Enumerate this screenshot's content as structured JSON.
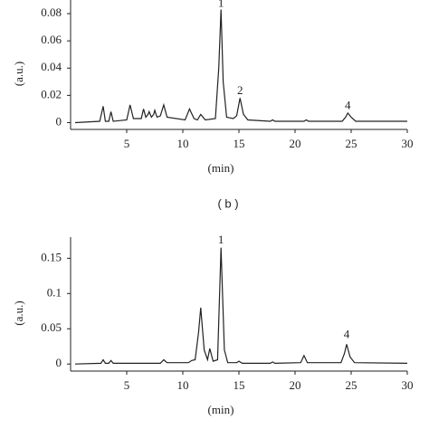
{
  "chart_data": [
    {
      "type": "line",
      "xlabel": "(min)",
      "ylabel": "(a.u.)",
      "xlim": [
        0,
        30
      ],
      "ylim": [
        -0.005,
        0.09
      ],
      "xticks": [
        5,
        10,
        15,
        20,
        25,
        30
      ],
      "yticks": [
        0,
        0.02,
        0.04,
        0.06,
        0.08
      ],
      "series": [
        {
          "color": "#222222",
          "x": [
            0.4,
            2.6,
            2.9,
            3.1,
            3.4,
            3.6,
            3.8,
            5.0,
            5.3,
            5.6,
            6.3,
            6.5,
            6.7,
            6.9,
            7.0,
            7.2,
            7.4,
            7.5,
            7.7,
            8.0,
            8.3,
            8.6,
            10.2,
            10.6,
            11.0,
            11.3,
            11.6,
            12.0,
            12.9,
            13.2,
            13.4,
            13.6,
            13.9,
            14.5,
            14.8,
            15.1,
            15.4,
            15.8,
            17.8,
            18.0,
            18.2,
            20.8,
            21.0,
            21.2,
            24.2,
            24.5,
            24.7,
            25.0,
            25.4,
            30
          ],
          "values": [
            0,
            0.001,
            0.012,
            0.001,
            0.001,
            0.008,
            0.001,
            0.002,
            0.013,
            0.003,
            0.003,
            0.01,
            0.004,
            0.006,
            0.008,
            0.004,
            0.006,
            0.009,
            0.004,
            0.005,
            0.013,
            0.004,
            0.002,
            0.01,
            0.003,
            0.002,
            0.006,
            0.002,
            0.003,
            0.04,
            0.083,
            0.03,
            0.004,
            0.003,
            0.005,
            0.018,
            0.006,
            0.002,
            0.001,
            0.002,
            0.001,
            0.001,
            0.002,
            0.001,
            0.001,
            0.004,
            0.007,
            0.004,
            0.001,
            0.001
          ]
        }
      ],
      "annotations": [
        {
          "text": "1",
          "x": 13.4,
          "y": 0.087
        },
        {
          "text": "2",
          "x": 15.1,
          "y": 0.023
        },
        {
          "text": "4",
          "x": 24.7,
          "y": 0.012
        }
      ]
    },
    {
      "type": "line",
      "title": "( b )",
      "xlabel": "(min)",
      "ylabel": "(a.u.)",
      "xlim": [
        0,
        30
      ],
      "ylim": [
        -0.01,
        0.18
      ],
      "xticks": [
        5,
        10,
        15,
        20,
        25,
        30
      ],
      "yticks": [
        0,
        0.05,
        0.1,
        0.15
      ],
      "series": [
        {
          "color": "#222222",
          "x": [
            0.4,
            2.7,
            2.9,
            3.1,
            3.4,
            3.6,
            3.8,
            8.0,
            8.3,
            8.6,
            10.5,
            10.8,
            11.1,
            11.4,
            11.6,
            11.9,
            12.2,
            12.4,
            12.7,
            13.1,
            13.4,
            13.7,
            14.0,
            14.8,
            15.0,
            15.3,
            17.8,
            18.0,
            18.2,
            20.5,
            20.8,
            21.1,
            24.1,
            24.4,
            24.6,
            24.9,
            25.3,
            30
          ],
          "values": [
            0,
            0.001,
            0.006,
            0.001,
            0.001,
            0.005,
            0.001,
            0.001,
            0.006,
            0.002,
            0.002,
            0.005,
            0.006,
            0.045,
            0.08,
            0.02,
            0.006,
            0.022,
            0.004,
            0.006,
            0.165,
            0.02,
            0.002,
            0.002,
            0.004,
            0.001,
            0.001,
            0.003,
            0.001,
            0.002,
            0.012,
            0.002,
            0.002,
            0.015,
            0.028,
            0.01,
            0.002,
            0.001
          ]
        }
      ],
      "annotations": [
        {
          "text": "1",
          "x": 13.4,
          "y": 0.175
        },
        {
          "text": "4",
          "x": 24.6,
          "y": 0.041
        }
      ]
    }
  ]
}
